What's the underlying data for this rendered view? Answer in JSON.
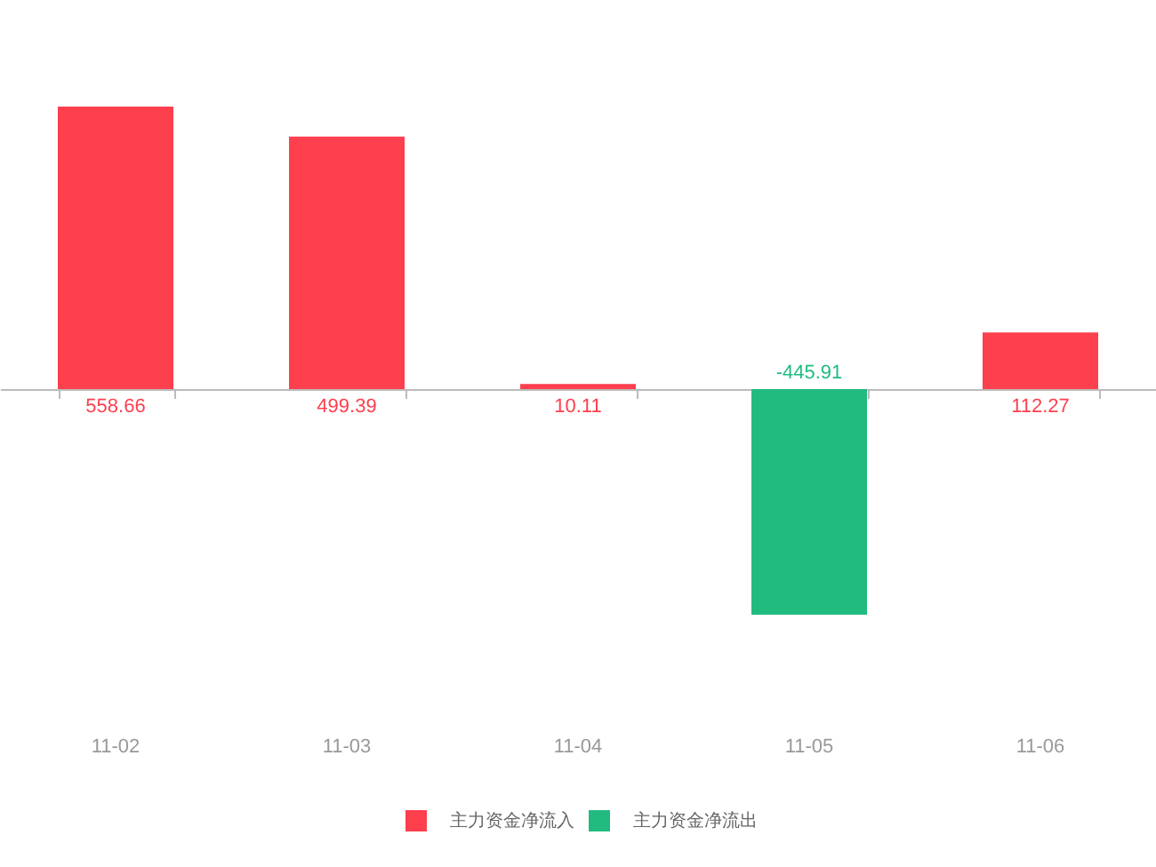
{
  "chart_data": {
    "type": "bar",
    "categories": [
      "11-02",
      "11-03",
      "11-04",
      "11-05",
      "11-06"
    ],
    "series": [
      {
        "name": "主力资金净流入",
        "color": "#fd3f4e",
        "values": [
          558.66,
          499.39,
          10.11,
          null,
          112.27
        ]
      },
      {
        "name": "主力资金净流出",
        "color": "#22bb7f",
        "values": [
          null,
          null,
          null,
          -445.91,
          null
        ]
      }
    ],
    "data_labels": true,
    "legend": "bottom",
    "tick_labels": "x"
  }
}
